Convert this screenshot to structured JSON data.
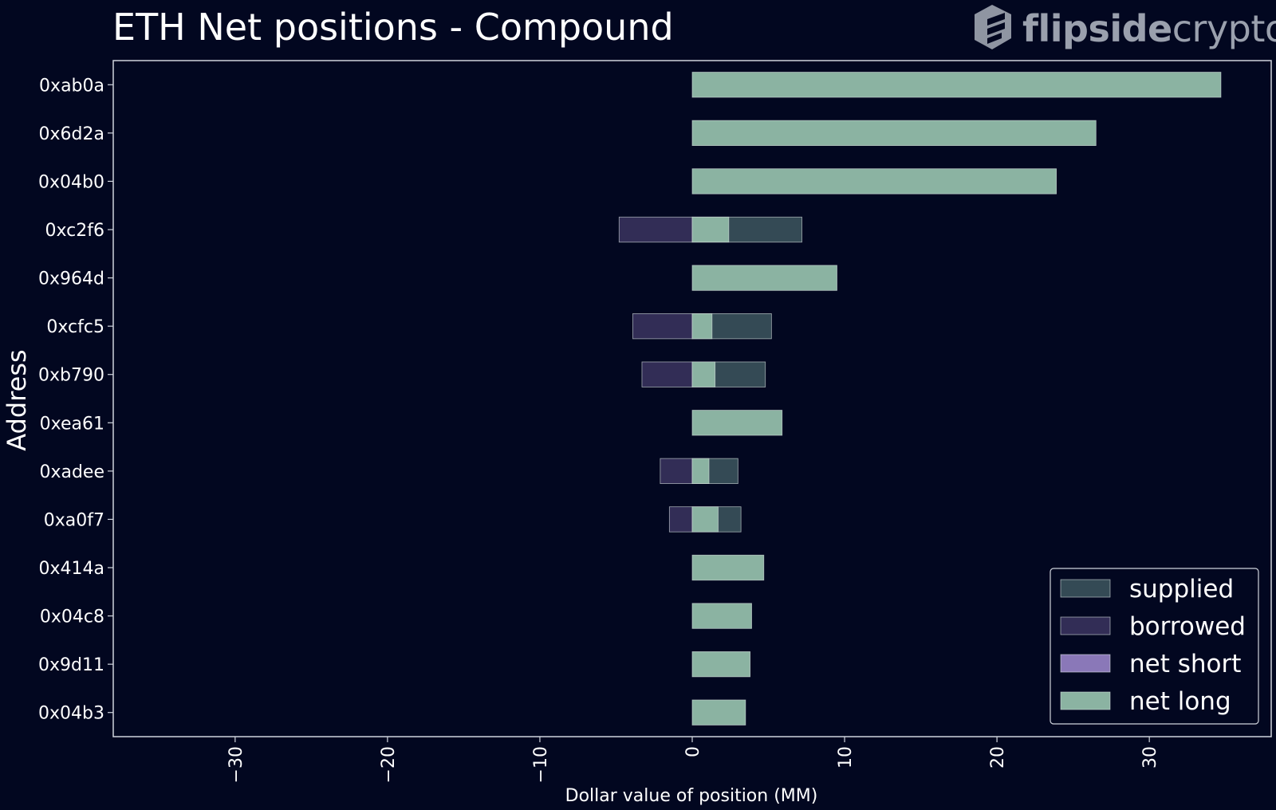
{
  "header": {
    "title": "ETH Net positions - Compound",
    "brand_part1": "flipside",
    "brand_part2": "crypto",
    "brand_icon": "flipside-logo-icon"
  },
  "colors": {
    "background": "#020720",
    "axis": "#d0d4dc",
    "supplied": "#344a55",
    "borrowed": "#322d56",
    "net_short": "#8a78b8",
    "net_long": "#8bb3a2",
    "bar_edge": "#d8e2e0"
  },
  "chart_data": {
    "type": "bar",
    "orientation": "horizontal",
    "title": "ETH Net positions - Compound",
    "xlabel": "Dollar value of position (MM)",
    "ylabel": "Address",
    "xlim": [
      -38,
      38
    ],
    "xticks": [
      -30,
      -20,
      -10,
      0,
      10,
      20,
      30
    ],
    "xtick_labels": [
      "−30",
      "−20",
      "−10",
      "0",
      "10",
      "20",
      "30"
    ],
    "categories": [
      "0xab0a",
      "0x6d2a",
      "0x04b0",
      "0xc2f6",
      "0x964d",
      "0xcfc5",
      "0xb790",
      "0xea61",
      "0xadee",
      "0xa0f7",
      "0x414a",
      "0x04c8",
      "0x9d11",
      "0x04b3"
    ],
    "series": [
      {
        "name": "supplied",
        "values": [
          0,
          0,
          0,
          7.2,
          0,
          5.2,
          4.8,
          0,
          3.0,
          3.2,
          0,
          0,
          0,
          0
        ]
      },
      {
        "name": "borrowed",
        "values": [
          0,
          0,
          0,
          -4.8,
          0,
          -3.9,
          -3.3,
          0,
          -2.1,
          -1.5,
          0,
          0,
          0,
          0
        ]
      },
      {
        "name": "net short",
        "values": [
          0,
          0,
          0,
          0,
          0,
          0,
          0,
          0,
          0,
          0,
          0,
          0,
          0,
          0
        ]
      },
      {
        "name": "net long",
        "values": [
          34.7,
          26.5,
          23.9,
          2.4,
          9.5,
          1.3,
          1.5,
          5.9,
          1.1,
          1.7,
          4.7,
          3.9,
          3.8,
          3.5
        ]
      }
    ],
    "legend": {
      "position": "lower-right",
      "entries": [
        "supplied",
        "borrowed",
        "net short",
        "net long"
      ]
    },
    "grid": false
  }
}
